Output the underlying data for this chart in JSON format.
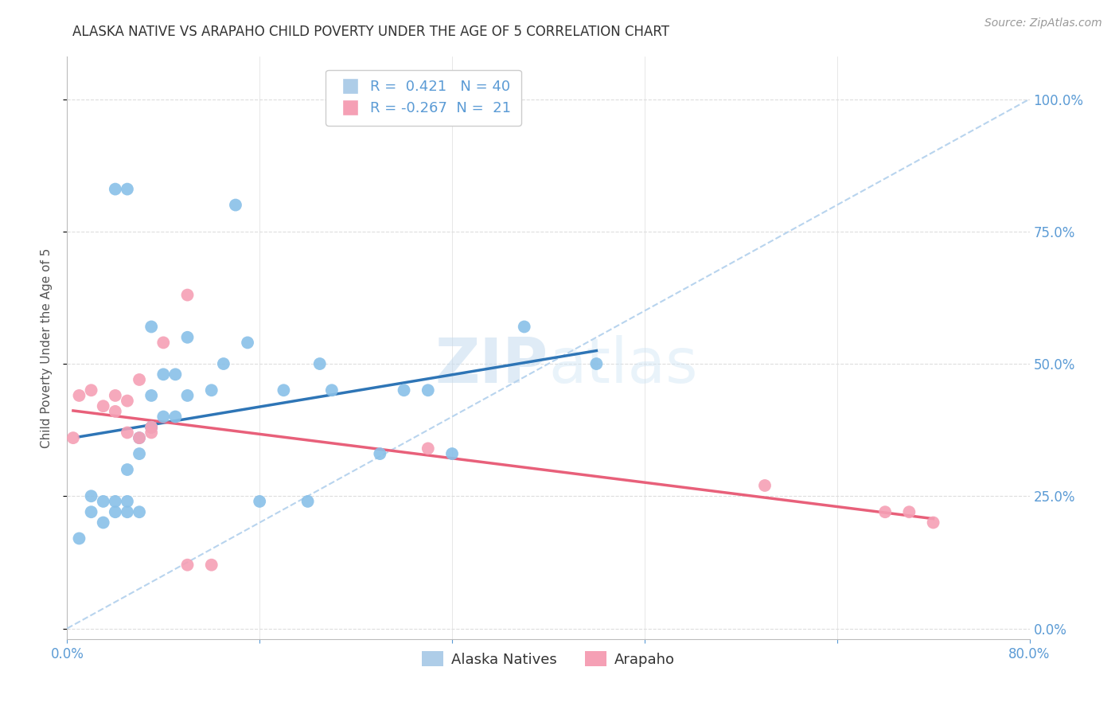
{
  "title": "ALASKA NATIVE VS ARAPAHO CHILD POVERTY UNDER THE AGE OF 5 CORRELATION CHART",
  "source": "Source: ZipAtlas.com",
  "ylabel": "Child Poverty Under the Age of 5",
  "xlim": [
    0.0,
    0.8
  ],
  "ylim": [
    -0.02,
    1.08
  ],
  "yticks": [
    0.0,
    0.25,
    0.5,
    0.75,
    1.0
  ],
  "xticks_minor": [
    0.0,
    0.16,
    0.32,
    0.48,
    0.64,
    0.8
  ],
  "xticks_labels": [
    0.0,
    0.8
  ],
  "alaska_color": "#89C0E8",
  "arapaho_color": "#F5A0B5",
  "alaska_line_color": "#2E75B6",
  "arapaho_line_color": "#E8607A",
  "dash_line_color": "#B8D4EE",
  "alaska_R": 0.421,
  "alaska_N": 40,
  "arapaho_R": -0.267,
  "arapaho_N": 21,
  "alaska_x": [
    0.01,
    0.02,
    0.02,
    0.03,
    0.03,
    0.04,
    0.04,
    0.04,
    0.05,
    0.05,
    0.05,
    0.05,
    0.06,
    0.06,
    0.06,
    0.07,
    0.07,
    0.07,
    0.07,
    0.08,
    0.08,
    0.09,
    0.09,
    0.1,
    0.1,
    0.12,
    0.13,
    0.14,
    0.15,
    0.16,
    0.18,
    0.2,
    0.21,
    0.22,
    0.26,
    0.28,
    0.3,
    0.32,
    0.38,
    0.44
  ],
  "alaska_y": [
    0.17,
    0.22,
    0.25,
    0.2,
    0.24,
    0.22,
    0.24,
    0.83,
    0.83,
    0.3,
    0.24,
    0.22,
    0.33,
    0.36,
    0.22,
    0.38,
    0.44,
    0.38,
    0.57,
    0.4,
    0.48,
    0.48,
    0.4,
    0.55,
    0.44,
    0.45,
    0.5,
    0.8,
    0.54,
    0.24,
    0.45,
    0.24,
    0.5,
    0.45,
    0.33,
    0.45,
    0.45,
    0.33,
    0.57,
    0.5
  ],
  "arapaho_x": [
    0.005,
    0.01,
    0.02,
    0.03,
    0.04,
    0.04,
    0.05,
    0.05,
    0.06,
    0.06,
    0.07,
    0.07,
    0.08,
    0.1,
    0.1,
    0.12,
    0.3,
    0.58,
    0.68,
    0.7,
    0.72
  ],
  "arapaho_y": [
    0.36,
    0.44,
    0.45,
    0.42,
    0.41,
    0.44,
    0.43,
    0.37,
    0.47,
    0.36,
    0.38,
    0.37,
    0.54,
    0.63,
    0.12,
    0.12,
    0.34,
    0.27,
    0.22,
    0.22,
    0.2
  ],
  "background_color": "#FFFFFF",
  "grid_color": "#DDDDDD",
  "axis_color": "#BBBBBB",
  "title_fontsize": 12,
  "label_fontsize": 11,
  "tick_color_blue": "#5B9BD5",
  "legend_box_color_alaska": "#AECDE8",
  "legend_box_color_arapaho": "#F5A0B5"
}
